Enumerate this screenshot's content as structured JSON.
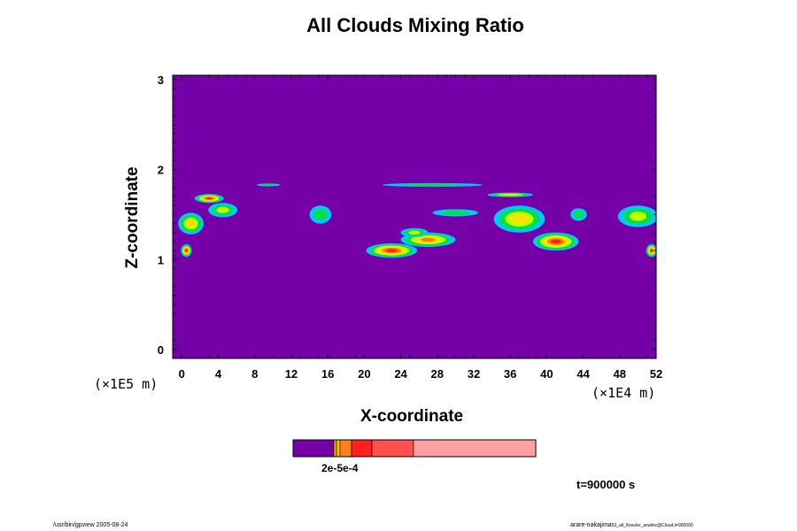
{
  "chart_data": {
    "type": "heatmap",
    "title": "All Clouds Mixing Ratio",
    "xlabel": "X-coordinate",
    "ylabel": "Z-coordinate",
    "x_unit": "(×1E4 m)",
    "y_unit": "(×1E5 m)",
    "xlim": [
      -1,
      52
    ],
    "ylim": [
      -0.1,
      3.05
    ],
    "x_ticks": [
      "0",
      "4",
      "8",
      "12",
      "16",
      "20",
      "24",
      "28",
      "32",
      "36",
      "40",
      "44",
      "48",
      "52"
    ],
    "y_ticks": [
      "0",
      "1",
      "2",
      "3"
    ],
    "background_level_color": "#7600a8",
    "colorbar": {
      "label": "2e-5e-4",
      "colors": [
        "#7600a8",
        "#e8b000",
        "#ff8020",
        "#ff2020",
        "#ff5050",
        "#ffa0a0"
      ]
    },
    "clouds": [
      {
        "x": 3.0,
        "z": 1.68,
        "rx": 1.6,
        "rz": 0.05,
        "level": 4
      },
      {
        "x": 1.0,
        "z": 1.4,
        "rx": 1.4,
        "rz": 0.12,
        "level": 2
      },
      {
        "x": 4.5,
        "z": 1.55,
        "rx": 1.6,
        "rz": 0.08,
        "level": 1
      },
      {
        "x": 0.5,
        "z": 1.1,
        "rx": 0.6,
        "rz": 0.07,
        "level": 4
      },
      {
        "x": 15.2,
        "z": 1.5,
        "rx": 1.2,
        "rz": 0.1,
        "level": 0
      },
      {
        "x": 23.0,
        "z": 1.1,
        "rx": 2.8,
        "rz": 0.08,
        "level": 4
      },
      {
        "x": 27.0,
        "z": 1.22,
        "rx": 3.0,
        "rz": 0.08,
        "level": 3
      },
      {
        "x": 25.5,
        "z": 1.3,
        "rx": 1.5,
        "rz": 0.05,
        "level": 1
      },
      {
        "x": 30.0,
        "z": 1.52,
        "rx": 2.5,
        "rz": 0.04,
        "level": 0
      },
      {
        "x": 36.0,
        "z": 1.72,
        "rx": 2.5,
        "rz": 0.025,
        "level": 2
      },
      {
        "x": 37.0,
        "z": 1.45,
        "rx": 2.8,
        "rz": 0.15,
        "level": 2
      },
      {
        "x": 41.0,
        "z": 1.2,
        "rx": 2.5,
        "rz": 0.1,
        "level": 4
      },
      {
        "x": 43.5,
        "z": 1.5,
        "rx": 0.9,
        "rz": 0.07,
        "level": 0
      },
      {
        "x": 50.0,
        "z": 1.48,
        "rx": 2.2,
        "rz": 0.12,
        "level": 1
      },
      {
        "x": 51.5,
        "z": 1.1,
        "rx": 0.6,
        "rz": 0.07,
        "level": 4
      },
      {
        "x": 27.5,
        "z": 1.83,
        "rx": 5.5,
        "rz": 0.02,
        "level": 0
      },
      {
        "x": 9.5,
        "z": 1.83,
        "rx": 1.3,
        "rz": 0.015,
        "level": 0
      }
    ]
  },
  "time_label": "t=900000 s",
  "footer_left": "/usr/bin/gpview 2005-08-24",
  "footer_right_main": "arare-nakajima",
  "footer_right_sub": "53_all_Kessler_analinc@Cloud,t=900000"
}
